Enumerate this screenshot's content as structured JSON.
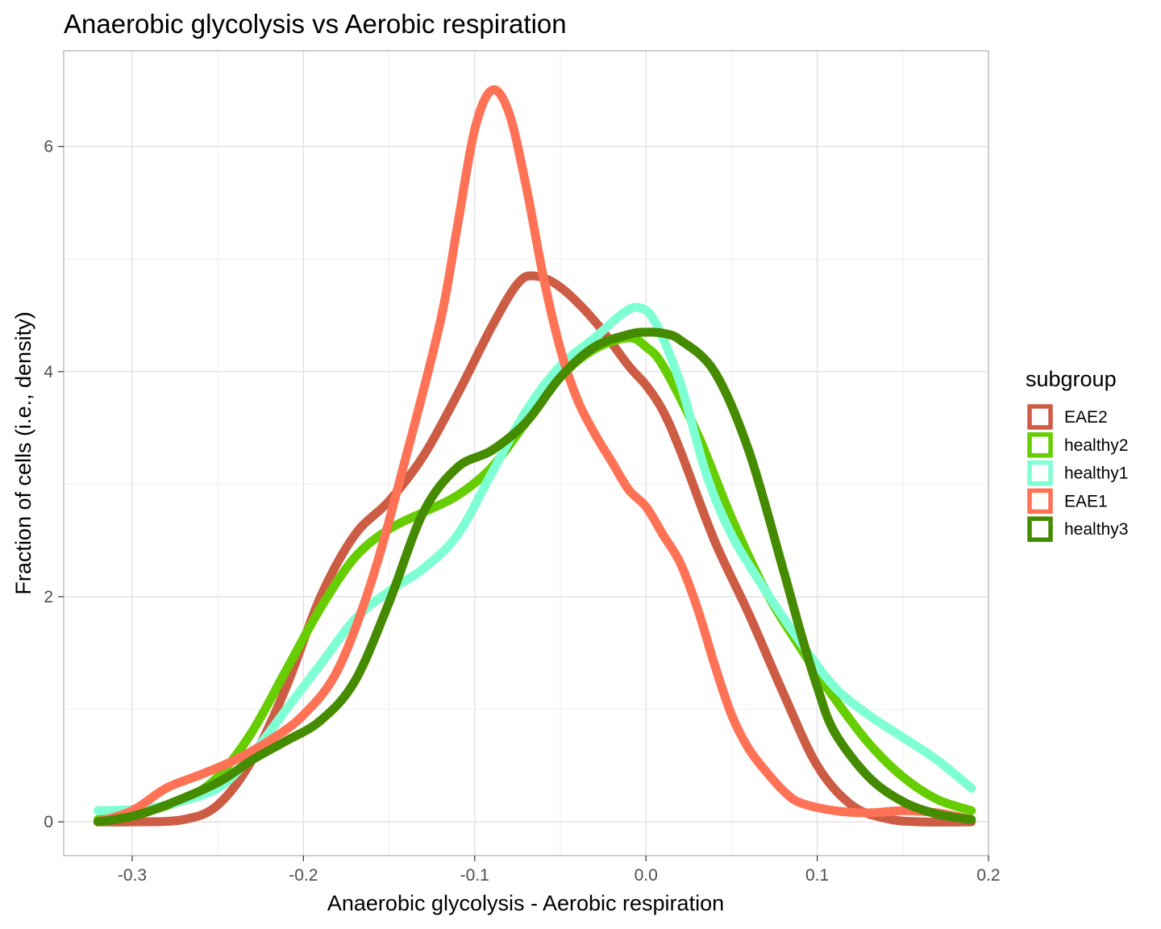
{
  "chart_data": {
    "type": "line",
    "title": "Anaerobic glycolysis vs Aerobic respiration",
    "xlabel": "Anaerobic glycolysis - Aerobic respiration",
    "ylabel": "Fraction of cells (i.e., density)",
    "xlim": [
      -0.34,
      0.2
    ],
    "ylim": [
      -0.3,
      6.85
    ],
    "x_ticks": [
      -0.3,
      -0.2,
      -0.1,
      0.0,
      0.1,
      0.2
    ],
    "x_tick_labels": [
      "-0.3",
      "-0.2",
      "-0.1",
      "0.0",
      "0.1",
      "0.2"
    ],
    "y_ticks": [
      0,
      2,
      4,
      6
    ],
    "y_tick_labels": [
      "0",
      "2",
      "4",
      "6"
    ],
    "grid": true,
    "legend": {
      "title": "subgroup",
      "position": "right"
    },
    "series": [
      {
        "name": "EAE2",
        "color": "#CD5C45",
        "points": [
          [
            -0.32,
            0.0
          ],
          [
            -0.3,
            0.0
          ],
          [
            -0.27,
            0.02
          ],
          [
            -0.25,
            0.15
          ],
          [
            -0.23,
            0.55
          ],
          [
            -0.21,
            1.2
          ],
          [
            -0.19,
            2.0
          ],
          [
            -0.17,
            2.55
          ],
          [
            -0.15,
            2.85
          ],
          [
            -0.13,
            3.25
          ],
          [
            -0.11,
            3.8
          ],
          [
            -0.09,
            4.4
          ],
          [
            -0.075,
            4.78
          ],
          [
            -0.065,
            4.85
          ],
          [
            -0.05,
            4.75
          ],
          [
            -0.03,
            4.45
          ],
          [
            -0.01,
            4.05
          ],
          [
            0.0,
            3.88
          ],
          [
            0.01,
            3.65
          ],
          [
            0.02,
            3.3
          ],
          [
            0.04,
            2.5
          ],
          [
            0.06,
            1.85
          ],
          [
            0.08,
            1.15
          ],
          [
            0.1,
            0.5
          ],
          [
            0.12,
            0.15
          ],
          [
            0.14,
            0.03
          ],
          [
            0.16,
            0.0
          ],
          [
            0.19,
            0.0
          ]
        ]
      },
      {
        "name": "healthy2",
        "color": "#66CD00",
        "points": [
          [
            -0.32,
            0.02
          ],
          [
            -0.3,
            0.06
          ],
          [
            -0.27,
            0.2
          ],
          [
            -0.25,
            0.4
          ],
          [
            -0.23,
            0.8
          ],
          [
            -0.21,
            1.35
          ],
          [
            -0.19,
            1.9
          ],
          [
            -0.17,
            2.35
          ],
          [
            -0.15,
            2.6
          ],
          [
            -0.13,
            2.75
          ],
          [
            -0.11,
            2.9
          ],
          [
            -0.09,
            3.15
          ],
          [
            -0.07,
            3.55
          ],
          [
            -0.05,
            3.95
          ],
          [
            -0.03,
            4.2
          ],
          [
            -0.01,
            4.3
          ],
          [
            0.0,
            4.22
          ],
          [
            0.01,
            4.05
          ],
          [
            0.03,
            3.45
          ],
          [
            0.05,
            2.7
          ],
          [
            0.07,
            2.05
          ],
          [
            0.09,
            1.55
          ],
          [
            0.11,
            1.1
          ],
          [
            0.13,
            0.7
          ],
          [
            0.15,
            0.4
          ],
          [
            0.17,
            0.2
          ],
          [
            0.19,
            0.1
          ]
        ]
      },
      {
        "name": "healthy1",
        "color": "#7FFFD4",
        "points": [
          [
            -0.32,
            0.1
          ],
          [
            -0.3,
            0.11
          ],
          [
            -0.28,
            0.15
          ],
          [
            -0.25,
            0.3
          ],
          [
            -0.23,
            0.6
          ],
          [
            -0.21,
            1.0
          ],
          [
            -0.19,
            1.4
          ],
          [
            -0.17,
            1.8
          ],
          [
            -0.15,
            2.05
          ],
          [
            -0.13,
            2.25
          ],
          [
            -0.11,
            2.55
          ],
          [
            -0.09,
            3.1
          ],
          [
            -0.07,
            3.65
          ],
          [
            -0.05,
            4.05
          ],
          [
            -0.03,
            4.3
          ],
          [
            -0.015,
            4.5
          ],
          [
            -0.005,
            4.57
          ],
          [
            0.005,
            4.45
          ],
          [
            0.02,
            3.9
          ],
          [
            0.035,
            3.1
          ],
          [
            0.05,
            2.55
          ],
          [
            0.07,
            2.05
          ],
          [
            0.09,
            1.6
          ],
          [
            0.11,
            1.2
          ],
          [
            0.13,
            0.95
          ],
          [
            0.15,
            0.75
          ],
          [
            0.17,
            0.55
          ],
          [
            0.19,
            0.3
          ]
        ]
      },
      {
        "name": "EAE1",
        "color": "#FF7256",
        "points": [
          [
            -0.32,
            0.0
          ],
          [
            -0.3,
            0.1
          ],
          [
            -0.28,
            0.3
          ],
          [
            -0.26,
            0.42
          ],
          [
            -0.24,
            0.55
          ],
          [
            -0.22,
            0.72
          ],
          [
            -0.2,
            0.95
          ],
          [
            -0.18,
            1.35
          ],
          [
            -0.16,
            2.15
          ],
          [
            -0.14,
            3.25
          ],
          [
            -0.12,
            4.45
          ],
          [
            -0.11,
            5.3
          ],
          [
            -0.1,
            6.15
          ],
          [
            -0.09,
            6.5
          ],
          [
            -0.08,
            6.3
          ],
          [
            -0.07,
            5.65
          ],
          [
            -0.06,
            4.85
          ],
          [
            -0.05,
            4.2
          ],
          [
            -0.04,
            3.75
          ],
          [
            -0.03,
            3.45
          ],
          [
            -0.02,
            3.2
          ],
          [
            -0.01,
            2.95
          ],
          [
            0.0,
            2.8
          ],
          [
            0.01,
            2.55
          ],
          [
            0.02,
            2.3
          ],
          [
            0.03,
            1.9
          ],
          [
            0.04,
            1.4
          ],
          [
            0.05,
            0.95
          ],
          [
            0.06,
            0.65
          ],
          [
            0.07,
            0.45
          ],
          [
            0.08,
            0.28
          ],
          [
            0.09,
            0.17
          ],
          [
            0.11,
            0.1
          ],
          [
            0.13,
            0.08
          ],
          [
            0.15,
            0.1
          ],
          [
            0.17,
            0.08
          ],
          [
            0.19,
            0.02
          ]
        ]
      },
      {
        "name": "healthy3",
        "color": "#458B00",
        "points": [
          [
            -0.32,
            0.0
          ],
          [
            -0.3,
            0.05
          ],
          [
            -0.28,
            0.15
          ],
          [
            -0.25,
            0.35
          ],
          [
            -0.23,
            0.55
          ],
          [
            -0.21,
            0.72
          ],
          [
            -0.19,
            0.9
          ],
          [
            -0.17,
            1.25
          ],
          [
            -0.15,
            1.95
          ],
          [
            -0.13,
            2.75
          ],
          [
            -0.11,
            3.15
          ],
          [
            -0.09,
            3.3
          ],
          [
            -0.07,
            3.55
          ],
          [
            -0.05,
            3.95
          ],
          [
            -0.03,
            4.22
          ],
          [
            -0.01,
            4.33
          ],
          [
            0.0,
            4.35
          ],
          [
            0.01,
            4.34
          ],
          [
            0.02,
            4.28
          ],
          [
            0.04,
            4.0
          ],
          [
            0.06,
            3.3
          ],
          [
            0.08,
            2.25
          ],
          [
            0.09,
            1.7
          ],
          [
            0.1,
            1.2
          ],
          [
            0.11,
            0.8
          ],
          [
            0.13,
            0.4
          ],
          [
            0.15,
            0.18
          ],
          [
            0.17,
            0.07
          ],
          [
            0.19,
            0.02
          ]
        ]
      }
    ]
  }
}
